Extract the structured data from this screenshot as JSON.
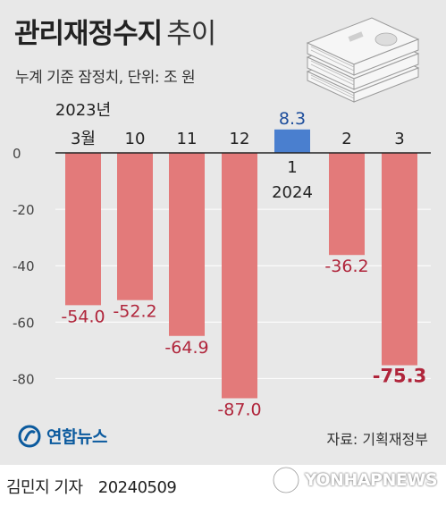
{
  "header": {
    "title_bold": "관리재정수지",
    "title_light": "추이",
    "subtitle": "누계 기준 잠정치, 단위: 조 원"
  },
  "chart_data": {
    "type": "bar",
    "title": "관리재정수지 추이",
    "subtitle": "누계 기준 잠정치, 단위: 조 원",
    "categories": [
      "3월",
      "10",
      "11",
      "12",
      "1",
      "2",
      "3"
    ],
    "year_labels": {
      "first": "2023년",
      "jan": "2024"
    },
    "values": [
      -54.0,
      -52.2,
      -64.9,
      -87.0,
      8.3,
      -36.2,
      -75.3
    ],
    "value_labels": [
      "-54.0",
      "-52.2",
      "-64.9",
      "-87.0",
      "8.3",
      "-36.2",
      "-75.3"
    ],
    "y_ticks": [
      0,
      -20,
      -40,
      -60,
      -80
    ],
    "y_tick_labels": [
      "0",
      "-20",
      "-40",
      "-60",
      "-80"
    ],
    "ylim": [
      -90,
      10
    ],
    "colors": {
      "negative": "#e37a7a",
      "positive": "#4a7fcf",
      "negative_label": "#b0253b",
      "positive_label": "#1e4e9c",
      "zero_line": "#222222",
      "grid": "#ffffff",
      "background": "#e8e8e8"
    },
    "emphasized_label_index": 6
  },
  "footer": {
    "source": "자료: 기획재정부",
    "logo_text": "연합뉴스",
    "byline": "김민지 기자",
    "date": "20240509",
    "watermark_text": "YONHAPNEWS"
  },
  "icons": {
    "illustration": "money-stack-icon",
    "logo": "yonhap-logo-icon",
    "watermark": "yonhap-watermark-icon"
  }
}
